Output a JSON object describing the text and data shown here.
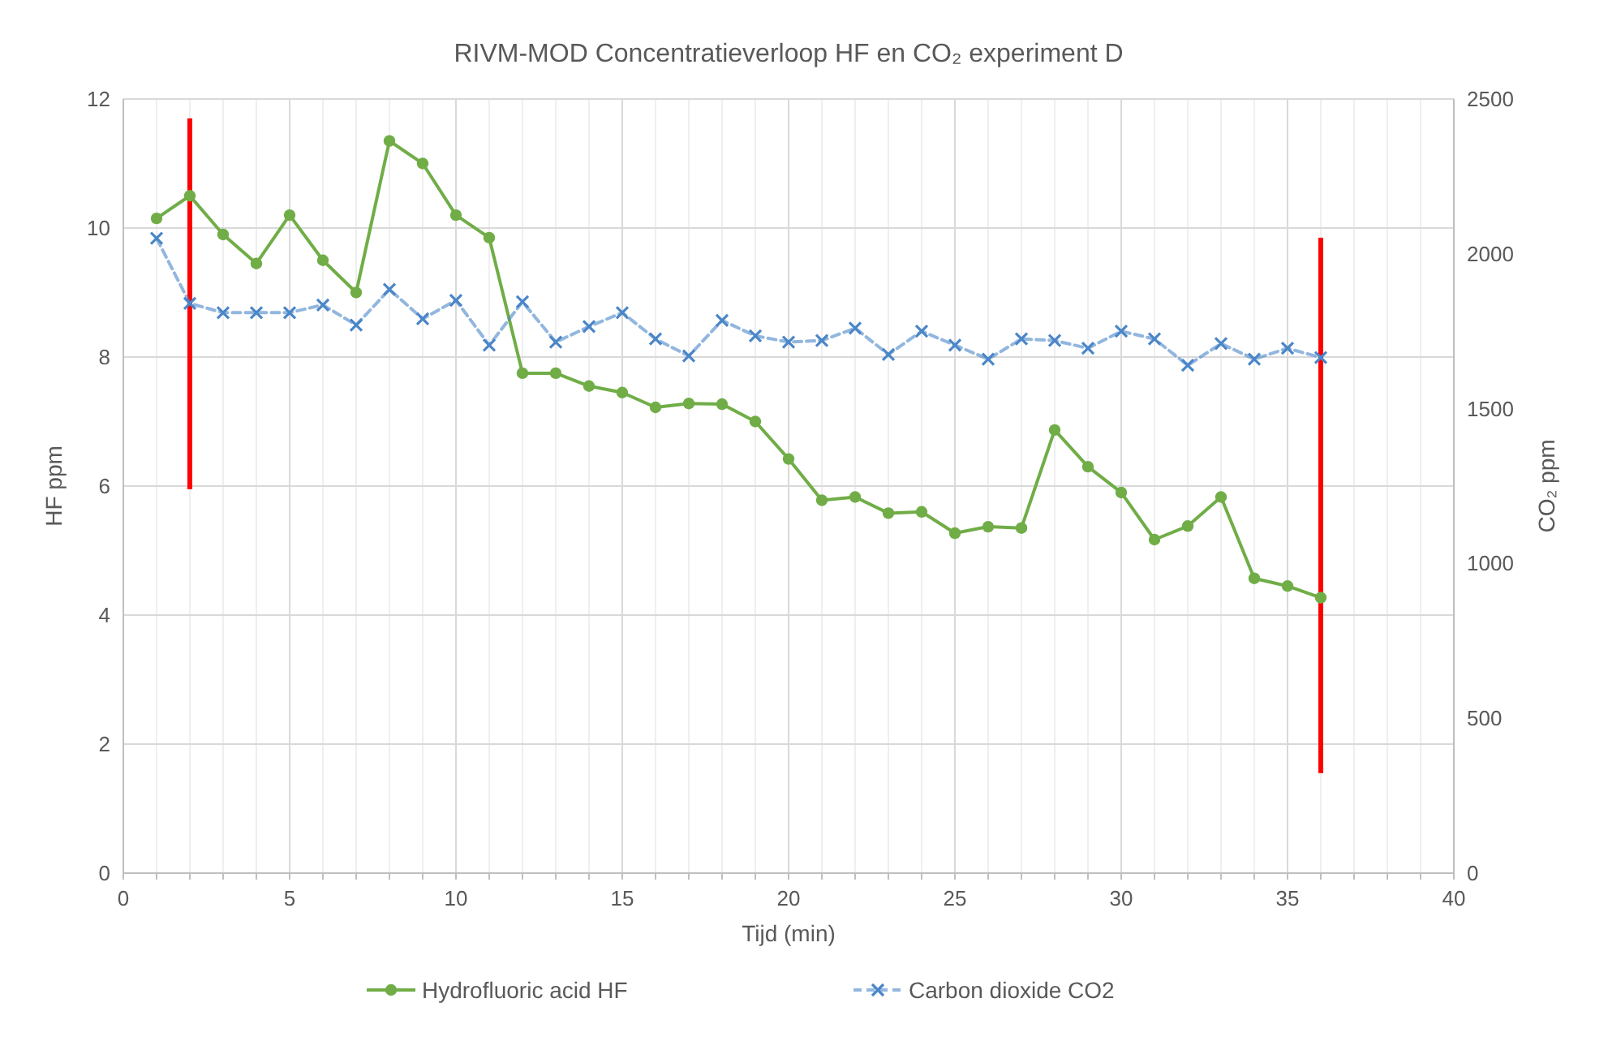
{
  "chart_data": {
    "type": "line",
    "title": "RIVM-MOD Concentratieverloop HF en CO₂ experiment D",
    "xlabel": "Tijd (min)",
    "ylabel": "HF ppm",
    "y2label": "CO₂ ppm",
    "x": [
      1,
      2,
      3,
      4,
      5,
      6,
      7,
      8,
      9,
      10,
      11,
      12,
      13,
      14,
      15,
      16,
      17,
      18,
      19,
      20,
      21,
      22,
      23,
      24,
      25,
      26,
      27,
      28,
      29,
      30,
      31,
      32,
      33,
      34,
      35,
      36
    ],
    "series": [
      {
        "name": "Hydrofluoric acid HF",
        "color": "#70ad47",
        "marker": "circle",
        "line_style": "solid",
        "values": [
          10.15,
          10.5,
          9.9,
          9.45,
          10.2,
          9.5,
          9.0,
          11.35,
          11.0,
          10.2,
          9.85,
          7.75,
          7.75,
          7.55,
          7.45,
          7.22,
          7.28,
          7.27,
          7.0,
          6.42,
          5.78,
          5.83,
          5.58,
          5.6,
          5.27,
          5.37,
          5.35,
          6.87,
          6.3,
          5.9,
          5.17,
          5.38,
          5.83,
          4.57,
          4.45,
          4.27
        ]
      },
      {
        "name": "Carbon dioxide CO2",
        "color": "#4a86c8",
        "marker": "cross",
        "line_style": "dashed",
        "axis": "y2",
        "values": [
          2050,
          1840,
          1810,
          1810,
          1810,
          1835,
          1770,
          1885,
          1790,
          1850,
          1705,
          1845,
          1715,
          1765,
          1810,
          1725,
          1670,
          1785,
          1735,
          1715,
          1720,
          1760,
          1675,
          1750,
          1705,
          1660,
          1725,
          1720,
          1695,
          1750,
          1725,
          1640,
          1710,
          1660,
          1695,
          1665
        ]
      },
      {
        "type": "bar",
        "color": "#ff0000",
        "x": [
          2,
          36
        ],
        "base": [
          5.95,
          1.55
        ],
        "values": [
          5.75,
          8.3
        ]
      }
    ],
    "xlim": [
      0,
      40
    ],
    "xticks": [
      0,
      {
        "value": 1,
        "label": null
      },
      {
        "value": 2,
        "label": null
      },
      {
        "value": 3,
        "label": null
      },
      {
        "value": 4,
        "label": null
      },
      5,
      {
        "value": 6,
        "label": null
      },
      {
        "value": 7,
        "label": null
      },
      {
        "value": 8,
        "label": null
      },
      {
        "value": 9,
        "label": null
      },
      10,
      {
        "value": 11,
        "label": null
      },
      {
        "value": 12,
        "label": null
      },
      {
        "value": 13,
        "label": null
      },
      {
        "value": 14,
        "label": null
      },
      15,
      {
        "value": 16,
        "label": null
      },
      {
        "value": 17,
        "label": null
      },
      {
        "value": 18,
        "label": null
      },
      {
        "value": 19,
        "label": null
      },
      20,
      {
        "value": 21,
        "label": null
      },
      {
        "value": 22,
        "label": null
      },
      {
        "value": 23,
        "label": null
      },
      {
        "value": 24,
        "label": null
      },
      25,
      {
        "value": 26,
        "label": null
      },
      {
        "value": 27,
        "label": null
      },
      {
        "value": 28,
        "label": null
      },
      {
        "value": 29,
        "label": null
      },
      30,
      {
        "value": 31,
        "label": null
      },
      {
        "value": 32,
        "label": null
      },
      {
        "value": 33,
        "label": null
      },
      {
        "value": 34,
        "label": null
      },
      35,
      {
        "value": 36,
        "label": null
      },
      {
        "value": 37,
        "label": null
      },
      {
        "value": 38,
        "label": null
      },
      {
        "value": 39,
        "label": null
      },
      40
    ],
    "ylim": [
      0,
      12
    ],
    "yticks": [
      0,
      2,
      4,
      6,
      8,
      10,
      12
    ],
    "y2lim": [
      0,
      2500
    ],
    "y2ticks": [
      0,
      500,
      1000,
      1500,
      2000,
      2500
    ],
    "grid": true,
    "legend": "bottom"
  }
}
